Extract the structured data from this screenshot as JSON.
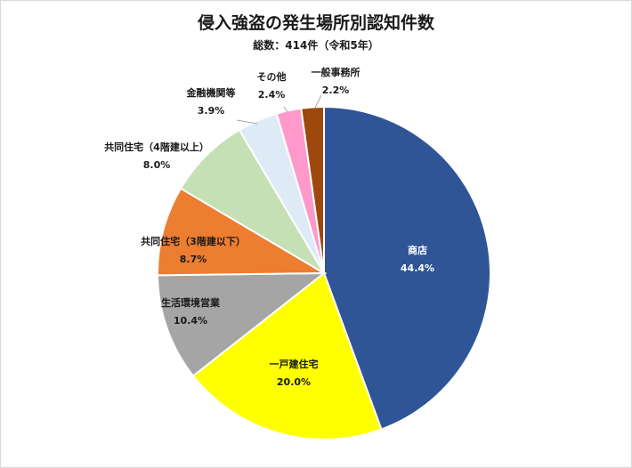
{
  "chart_data": {
    "type": "pie",
    "title": "侵入強盗の発生場所別認知件数",
    "subtitle": "総数：414件（令和5年）",
    "slices": [
      {
        "label": "商店",
        "value": 44.4,
        "value_text": "44.4%",
        "color": "#2f5597"
      },
      {
        "label": "一戸建住宅",
        "value": 20.0,
        "value_text": "20.0%",
        "color": "#ffff00"
      },
      {
        "label": "生活環境営業",
        "value": 10.4,
        "value_text": "10.4%",
        "color": "#a5a5a5"
      },
      {
        "label": "共同住宅（3階建以下）",
        "value": 8.7,
        "value_text": "8.7%",
        "color": "#ed7d31"
      },
      {
        "label": "共同住宅（4階建以上）",
        "value": 8.0,
        "value_text": "8.0%",
        "color": "#c5e0b4"
      },
      {
        "label": "金融機関等",
        "value": 3.9,
        "value_text": "3.9%",
        "color": "#deebf7"
      },
      {
        "label": "その他",
        "value": 2.4,
        "value_text": "2.4%",
        "color": "#ff99cc"
      },
      {
        "label": "一般事務所",
        "value": 2.2,
        "value_text": "2.2%",
        "color": "#9e480e"
      }
    ]
  }
}
